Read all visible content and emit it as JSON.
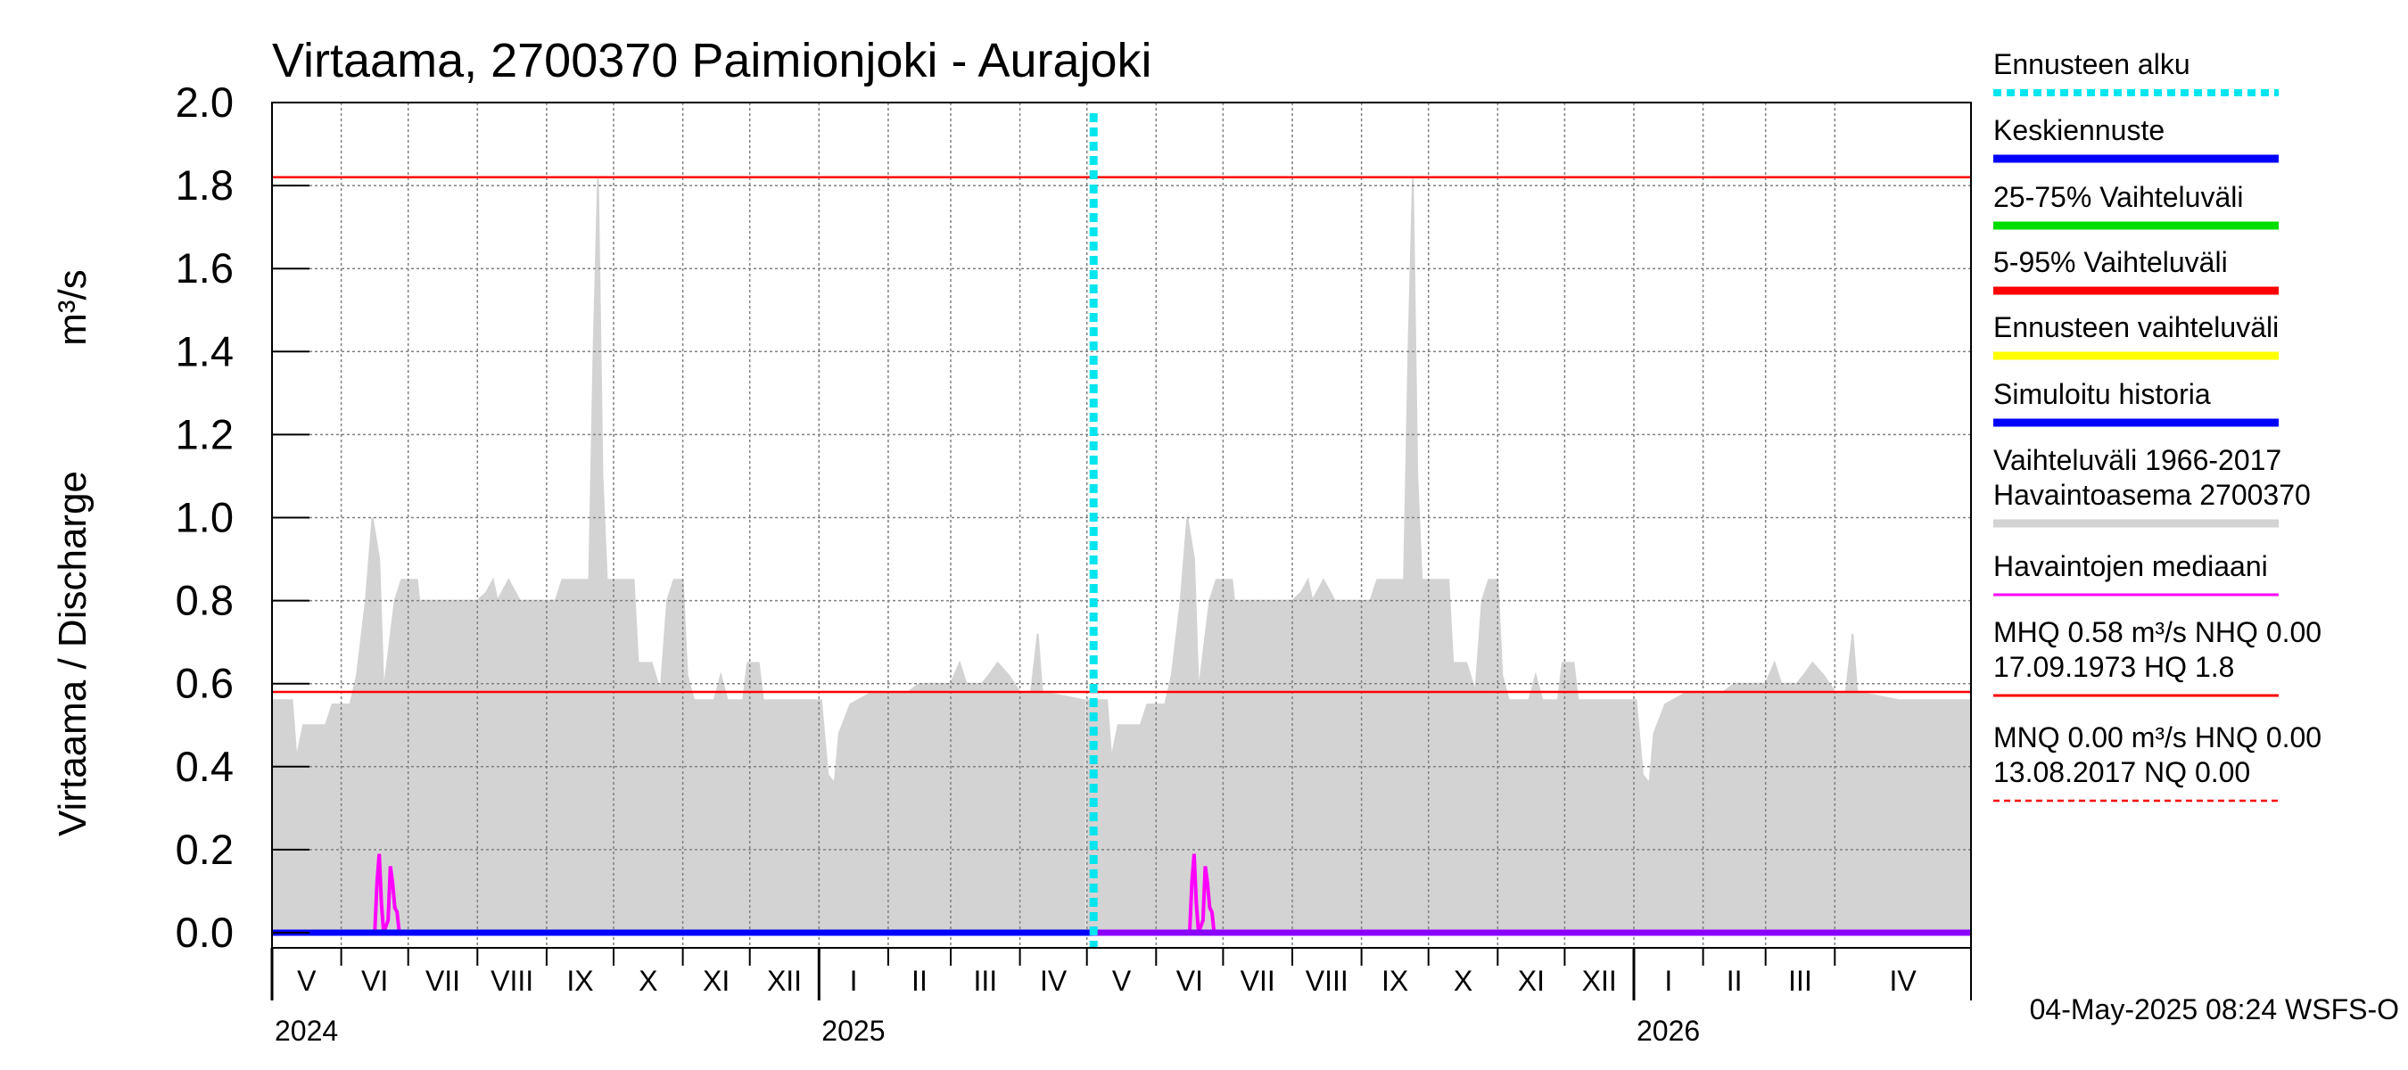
{
  "chart_data": {
    "type": "line",
    "title": "Virtaama, 2700370 Paimionjoki - Aurajoki",
    "ylabel": "Virtaama / Discharge",
    "yunit": "m³/s",
    "ylim": [
      0.0,
      2.0
    ],
    "yticks": [
      "0.0",
      "0.2",
      "0.4",
      "0.6",
      "0.8",
      "1.0",
      "1.2",
      "1.4",
      "1.6",
      "1.8",
      "2.0"
    ],
    "x_range": [
      "2024-05-01",
      "2026-05-31"
    ],
    "months": [
      {
        "label": "V",
        "start": "2024-05-01"
      },
      {
        "label": "VI",
        "start": "2024-06-01"
      },
      {
        "label": "VII",
        "start": "2024-07-01"
      },
      {
        "label": "VIII",
        "start": "2024-08-01"
      },
      {
        "label": "IX",
        "start": "2024-09-01"
      },
      {
        "label": "X",
        "start": "2024-10-01"
      },
      {
        "label": "XI",
        "start": "2024-11-01"
      },
      {
        "label": "XII",
        "start": "2024-12-01"
      },
      {
        "label": "I",
        "start": "2025-01-01"
      },
      {
        "label": "II",
        "start": "2025-02-01"
      },
      {
        "label": "III",
        "start": "2025-03-01"
      },
      {
        "label": "IV",
        "start": "2025-04-01"
      },
      {
        "label": "V",
        "start": "2025-05-01"
      },
      {
        "label": "VI",
        "start": "2025-06-01"
      },
      {
        "label": "VII",
        "start": "2025-07-01"
      },
      {
        "label": "VIII",
        "start": "2025-08-01"
      },
      {
        "label": "IX",
        "start": "2025-09-01"
      },
      {
        "label": "X",
        "start": "2025-10-01"
      },
      {
        "label": "XI",
        "start": "2025-11-01"
      },
      {
        "label": "XII",
        "start": "2025-12-01"
      },
      {
        "label": "I",
        "start": "2026-01-01"
      },
      {
        "label": "II",
        "start": "2026-02-01"
      },
      {
        "label": "III",
        "start": "2026-03-01"
      },
      {
        "label": "IV",
        "start": "2026-04-01"
      }
    ],
    "years": [
      {
        "label": "2024",
        "start": "2024-05-01"
      },
      {
        "label": "2025",
        "start": "2025-01-01"
      },
      {
        "label": "2026",
        "start": "2026-01-01"
      }
    ],
    "forecast_start": "2025-05-04",
    "hlines": {
      "HQ": 1.82,
      "MHQ": 0.58
    },
    "range_1966_2017": {
      "name": "Vaihteluväli 1966-2017 Havaintoasema 2700370",
      "upper": [
        [
          "05-01",
          0.56
        ],
        [
          "05-10",
          0.56
        ],
        [
          "05-12",
          0.42
        ],
        [
          "05-15",
          0.5
        ],
        [
          "05-25",
          0.5
        ],
        [
          "05-28",
          0.55
        ],
        [
          "06-05",
          0.55
        ],
        [
          "06-08",
          0.62
        ],
        [
          "06-12",
          0.8
        ],
        [
          "06-15",
          1.0
        ],
        [
          "06-18",
          0.9
        ],
        [
          "06-20",
          0.58
        ],
        [
          "06-25",
          0.8
        ],
        [
          "06-28",
          0.85
        ],
        [
          "07-05",
          0.85
        ],
        [
          "07-06",
          0.8
        ],
        [
          "07-10",
          0.8
        ],
        [
          "08-01",
          0.8
        ],
        [
          "08-05",
          0.82
        ],
        [
          "08-08",
          0.85
        ],
        [
          "08-10",
          0.8
        ],
        [
          "08-12",
          0.82
        ],
        [
          "08-15",
          0.85
        ],
        [
          "08-20",
          0.8
        ],
        [
          "09-05",
          0.8
        ],
        [
          "09-08",
          0.85
        ],
        [
          "09-20",
          0.85
        ],
        [
          "09-22",
          1.4
        ],
        [
          "09-24",
          1.82
        ],
        [
          "09-26",
          1.1
        ],
        [
          "09-28",
          0.85
        ],
        [
          "10-05",
          0.85
        ],
        [
          "10-10",
          0.85
        ],
        [
          "10-12",
          0.65
        ],
        [
          "10-18",
          0.65
        ],
        [
          "10-22",
          0.58
        ],
        [
          "10-25",
          0.8
        ],
        [
          "10-28",
          0.85
        ],
        [
          "11-01",
          0.85
        ],
        [
          "11-03",
          0.62
        ],
        [
          "11-06",
          0.56
        ],
        [
          "11-15",
          0.56
        ],
        [
          "11-18",
          0.62
        ],
        [
          "11-21",
          0.56
        ],
        [
          "11-28",
          0.56
        ],
        [
          "11-30",
          0.65
        ],
        [
          "12-05",
          0.65
        ],
        [
          "12-07",
          0.56
        ],
        [
          "12-31",
          0.56
        ],
        [
          "01-02",
          0.56
        ],
        [
          "01-05",
          0.38
        ],
        [
          "01-08",
          0.36
        ],
        [
          "01-10",
          0.48
        ],
        [
          "01-15",
          0.55
        ],
        [
          "01-25",
          0.58
        ],
        [
          "02-10",
          0.58
        ],
        [
          "02-15",
          0.6
        ],
        [
          "03-01",
          0.6
        ],
        [
          "03-05",
          0.65
        ],
        [
          "03-08",
          0.6
        ],
        [
          "03-15",
          0.6
        ],
        [
          "03-18",
          0.62
        ],
        [
          "03-22",
          0.65
        ],
        [
          "03-27",
          0.62
        ],
        [
          "04-01",
          0.58
        ],
        [
          "04-06",
          0.58
        ],
        [
          "04-09",
          0.72
        ],
        [
          "04-11",
          0.58
        ],
        [
          "04-30",
          0.56
        ]
      ],
      "lower": 0.0
    },
    "median": {
      "name": "Havaintojen mediaani",
      "points": [
        [
          "06-01",
          0.0
        ],
        [
          "06-16",
          0.0
        ],
        [
          "06-17",
          0.12
        ],
        [
          "06-18",
          0.19
        ],
        [
          "06-19",
          0.07
        ],
        [
          "06-20",
          0.0
        ],
        [
          "06-22",
          0.03
        ],
        [
          "06-23",
          0.16
        ],
        [
          "06-24",
          0.12
        ],
        [
          "06-25",
          0.06
        ],
        [
          "06-26",
          0.05
        ],
        [
          "06-27",
          0.0
        ],
        [
          "07-31",
          0.0
        ]
      ]
    },
    "mean_forecast_value": 0.0,
    "legend": [
      {
        "label": "Ennusteen alku",
        "color": "#00e5ee",
        "style": "dotted"
      },
      {
        "label": "Keskiennuste",
        "color": "#0000ff",
        "style": "solid"
      },
      {
        "label": "25-75% Vaihteluväli",
        "color": "#00dd00",
        "style": "solid"
      },
      {
        "label": "5-95% Vaihteluväli",
        "color": "#ff0000",
        "style": "solid"
      },
      {
        "label": "Ennusteen vaihteluväli",
        "color": "#ffff00",
        "style": "solid"
      },
      {
        "label": "Simuloitu historia",
        "color": "#0000ff",
        "style": "solid"
      },
      {
        "label": "Vaihteluväli 1966-2017",
        "label2": " Havaintoasema 2700370",
        "color": "#d3d3d3",
        "style": "solid"
      },
      {
        "label": "Havaintojen mediaani",
        "color": "#ff00ff",
        "style": "thin"
      },
      {
        "label": "MHQ 0.58 m³/s NHQ 0.00",
        "label2": "17.09.1973 HQ  1.8",
        "color": "#ff0000",
        "style": "thin"
      },
      {
        "label": "MNQ 0.00 m³/s HNQ 0.00",
        "label2": "13.08.2017 NQ 0.00",
        "color": "#ff0000",
        "style": "dashed"
      }
    ],
    "footer": "04-May-2025 08:24 WSFS-O"
  },
  "colors": {
    "range": "#d3d3d3",
    "grid": "#808080",
    "hline": "#ff0000",
    "median": "#ff00ff",
    "forecast_start": "#00e5ee",
    "mean": "#0000ff"
  }
}
